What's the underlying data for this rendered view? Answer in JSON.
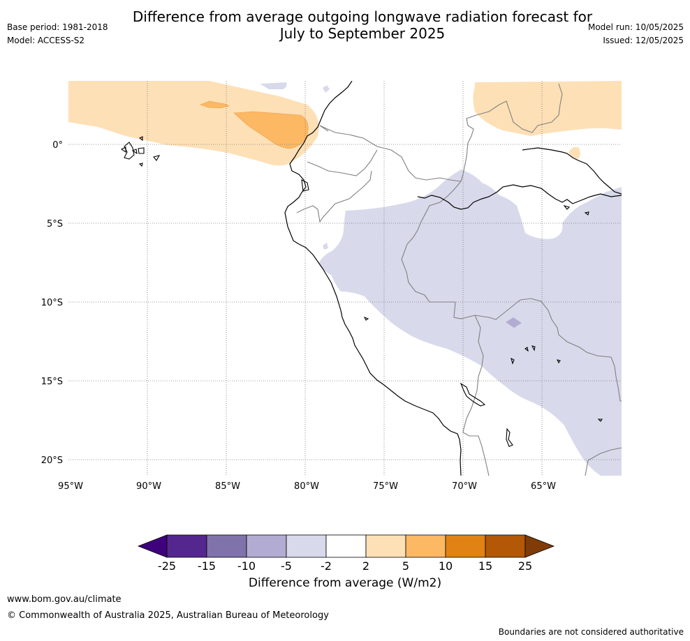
{
  "title_line1": "Difference from average outgoing longwave radiation forecast for",
  "title_line2": "July to September 2025",
  "meta": {
    "base_period": "Base period: 1981-2018",
    "model": "Model: ACCESS-S2",
    "model_run": "Model run: 10/05/2025",
    "issued": "Issued: 12/05/2025"
  },
  "map": {
    "lat_labels": [
      "0°",
      "5°S",
      "10°S",
      "15°S",
      "20°S"
    ],
    "lon_labels": [
      "95°W",
      "90°W",
      "85°W",
      "80°W",
      "75°W",
      "70°W",
      "65°W"
    ],
    "land_color": "#ffffff",
    "coast_color": "#000000",
    "border_color": "#808080"
  },
  "legend": {
    "title": "Difference from average (W/m2)",
    "ticks": [
      "-25",
      "-15",
      "-10",
      "-5",
      "-2",
      "2",
      "5",
      "10",
      "15",
      "25"
    ],
    "colors": [
      "#3f007d",
      "#54278f",
      "#8073ac",
      "#b2abd2",
      "#d8daeb",
      "#ffffff",
      "#fee0b6",
      "#fdb863",
      "#e08214",
      "#b35806",
      "#7f3b08"
    ]
  },
  "footer": {
    "url": "www.bom.gov.au/climate",
    "copyright": "© Commonwealth of Australia 2025, Australian Bureau of Meteorology",
    "disclaimer": "Boundaries are not considered authoritative"
  }
}
